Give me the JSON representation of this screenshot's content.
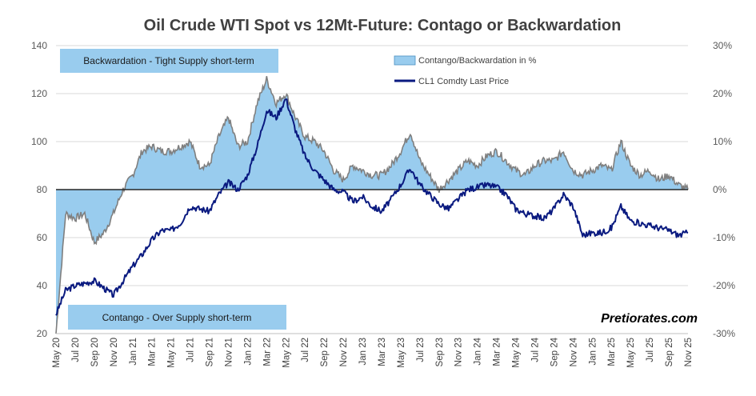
{
  "chart_data": {
    "type": "area+line",
    "title": "Oil Crude WTI Spot vs 12Mt-Future: Contago or Backwardation",
    "xlabel": "",
    "ylabel_left": "",
    "ylabel_right": "",
    "ylim_left": [
      20,
      140
    ],
    "ylim_right": [
      -30,
      30
    ],
    "left_ticks": [
      "20",
      "40",
      "60",
      "80",
      "100",
      "120",
      "140"
    ],
    "right_ticks": [
      "-30%",
      "-20%",
      "-10%",
      "0%",
      "10%",
      "20%",
      "30%"
    ],
    "x_ticks": [
      "May 20",
      "Jul 20",
      "Sep 20",
      "Nov 20",
      "Jan 21",
      "Mar 21",
      "May 21",
      "Jul 21",
      "Sep 21",
      "Nov 21",
      "Jan 22",
      "Mar 22",
      "May 22",
      "Jul 22",
      "Sep 22",
      "Nov 22",
      "Jan 23",
      "Mar 23",
      "May 23",
      "Jul 23",
      "Sep 23",
      "Nov 23",
      "Jan 24",
      "Mar 24",
      "May 24",
      "Jul 24",
      "Sep 24",
      "Nov 24",
      "Jan 25",
      "Mar 25",
      "May 25",
      "Jul 25",
      "Sep 25",
      "Nov 25"
    ],
    "legend": [
      {
        "name": "Contango/Backwardation in %",
        "color": "#99ccee",
        "kind": "area"
      },
      {
        "name": "CL1 Comdty Last Price",
        "color": "#0a1a80",
        "kind": "line"
      }
    ],
    "series": [
      {
        "name": "CL1 Comdty Last Price",
        "axis": "left",
        "month_index": [
          0,
          1,
          2,
          3,
          4,
          5,
          6,
          7,
          8,
          9,
          10,
          11,
          12,
          13,
          14,
          15,
          16,
          17,
          18,
          19,
          20,
          21,
          22,
          23,
          24,
          25,
          26,
          27,
          28,
          29,
          30,
          31,
          32,
          33,
          34,
          35,
          36,
          37,
          38,
          39,
          40,
          41,
          42,
          43,
          44,
          45,
          46,
          47,
          48,
          49,
          50,
          51,
          52,
          53,
          54,
          55,
          56,
          57,
          58,
          59,
          60,
          61,
          62,
          63,
          64,
          65,
          66
        ],
        "values": [
          28,
          38,
          40,
          41,
          42,
          39,
          36,
          42,
          48,
          53,
          59,
          63,
          63,
          66,
          73,
          72,
          71,
          78,
          83,
          80,
          86,
          98,
          113,
          110,
          118,
          105,
          94,
          88,
          84,
          80,
          79,
          75,
          77,
          73,
          71,
          76,
          82,
          89,
          82,
          78,
          74,
          72,
          76,
          80,
          81,
          82,
          81,
          78,
          72,
          70,
          69,
          68,
          72,
          78,
          73,
          61,
          62,
          62,
          64,
          73,
          67,
          66,
          65,
          64,
          63,
          61,
          62
        ]
      },
      {
        "name": "Contango/Backwardation in %",
        "axis": "right",
        "month_index": [
          0,
          1,
          2,
          3,
          4,
          5,
          6,
          7,
          8,
          9,
          10,
          11,
          12,
          13,
          14,
          15,
          16,
          17,
          18,
          19,
          20,
          21,
          22,
          23,
          24,
          25,
          26,
          27,
          28,
          29,
          30,
          31,
          32,
          33,
          34,
          35,
          36,
          37,
          38,
          39,
          40,
          41,
          42,
          43,
          44,
          45,
          46,
          47,
          48,
          49,
          50,
          51,
          52,
          53,
          54,
          55,
          56,
          57,
          58,
          59,
          60,
          61,
          62,
          63,
          64,
          65,
          66
        ],
        "values": [
          -30,
          -5,
          -6,
          -5,
          -11,
          -9,
          -5,
          0,
          3,
          8,
          9,
          8,
          8,
          9,
          10,
          5,
          5,
          11,
          15,
          9,
          10,
          18,
          23,
          18,
          20,
          15,
          11,
          10,
          8,
          4,
          2,
          5,
          4,
          3,
          3,
          5,
          8,
          12,
          6,
          3,
          0,
          2,
          4,
          6,
          5,
          7,
          8,
          6,
          4,
          3,
          5,
          6,
          6,
          8,
          4,
          3,
          4,
          5,
          4,
          10,
          5,
          3,
          4,
          2,
          3,
          1,
          0
        ]
      }
    ],
    "annotations": [
      "Backwardation - Tight Supply short-term",
      "Contango - Over Supply short-term"
    ],
    "watermark": "Pretiorates.com",
    "grid": "horizontal"
  }
}
